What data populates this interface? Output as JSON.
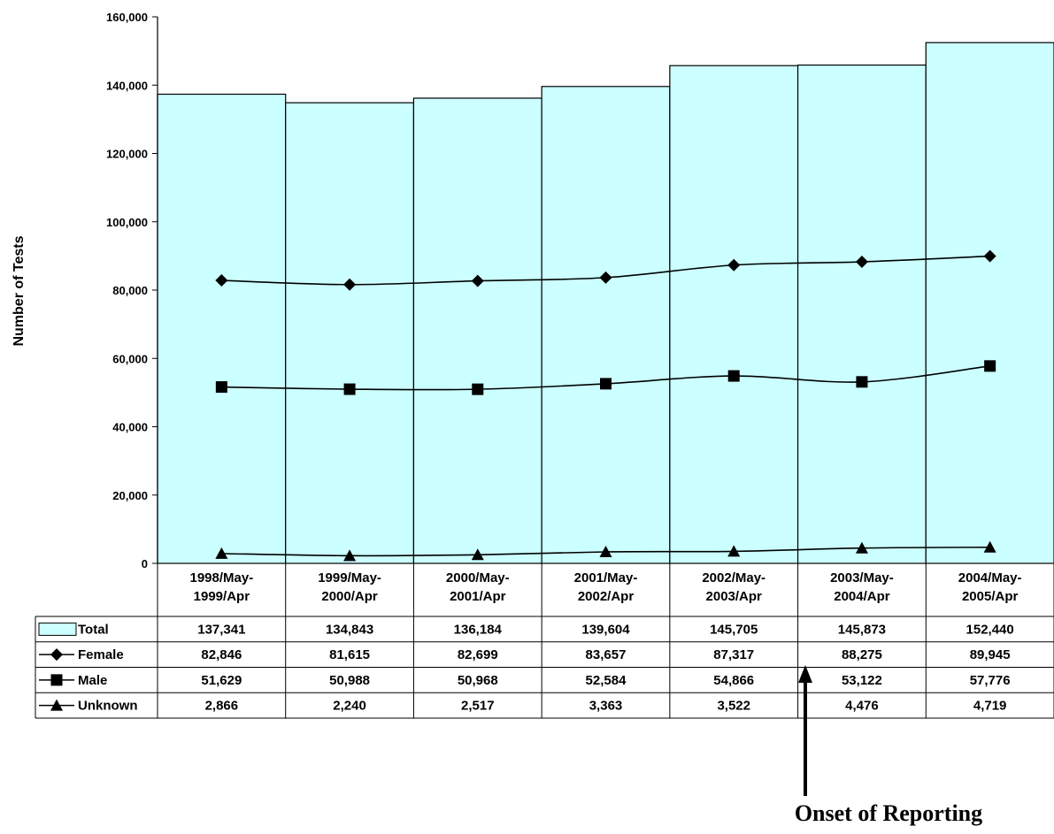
{
  "chart_data": {
    "type": "bar",
    "ylabel": "Number of Tests",
    "ylim": [
      0,
      160000
    ],
    "yticks": [
      "0",
      "20,000",
      "40,000",
      "60,000",
      "80,000",
      "100,000",
      "120,000",
      "140,000",
      "160,000"
    ],
    "categories": [
      [
        "1998/May-",
        "1999/Apr"
      ],
      [
        "1999/May-",
        "2000/Apr"
      ],
      [
        "2000/May-",
        "2001/Apr"
      ],
      [
        "2001/May-",
        "2002/Apr"
      ],
      [
        "2002/May-",
        "2003/Apr"
      ],
      [
        "2003/May-",
        "2004/Apr"
      ],
      [
        "2004/May-",
        "2005/Apr"
      ]
    ],
    "series": [
      {
        "name": "Total",
        "kind": "bar",
        "marker": "box",
        "color": "#ccffff",
        "values": [
          137341,
          134843,
          136184,
          139604,
          145705,
          145873,
          152440
        ],
        "labels": [
          "137,341",
          "134,843",
          "136,184",
          "139,604",
          "145,705",
          "145,873",
          "152,440"
        ]
      },
      {
        "name": "Female",
        "kind": "line",
        "marker": "diamond",
        "values": [
          82846,
          81615,
          82699,
          83657,
          87317,
          88275,
          89945
        ],
        "labels": [
          "82,846",
          "81,615",
          "82,699",
          "83,657",
          "87,317",
          "88,275",
          "89,945"
        ]
      },
      {
        "name": "Male",
        "kind": "line",
        "marker": "square",
        "values": [
          51629,
          50988,
          50968,
          52584,
          54866,
          53122,
          57776
        ],
        "labels": [
          "51,629",
          "50,988",
          "50,968",
          "52,584",
          "54,866",
          "53,122",
          "57,776"
        ]
      },
      {
        "name": "Unknown",
        "kind": "line",
        "marker": "triangle",
        "values": [
          2866,
          2240,
          2517,
          3363,
          3522,
          4476,
          4719
        ],
        "labels": [
          "2,866",
          "2,240",
          "2,517",
          "3,363",
          "3,522",
          "4,476",
          "4,719"
        ]
      }
    ],
    "annotation": {
      "text": "Onset of Reporting",
      "at_category": 5,
      "position": "left-boundary"
    },
    "legend": "data-table-below",
    "grid": false
  }
}
